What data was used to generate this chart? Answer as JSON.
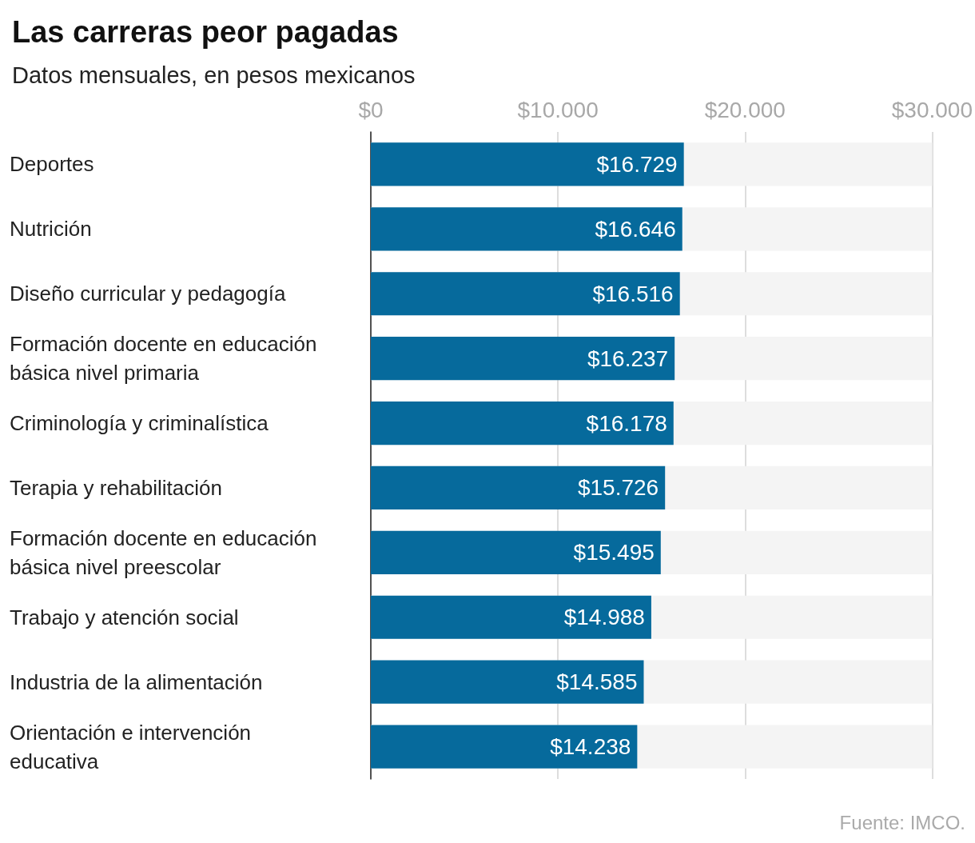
{
  "chart_data": {
    "type": "bar",
    "orientation": "horizontal",
    "title": "Las carreras peor pagadas",
    "subtitle": "Datos mensuales, en pesos mexicanos",
    "categories": [
      "Deportes",
      "Nutrición",
      "Diseño curricular y pedagogía",
      "Formación docente en educación básica nivel primaria",
      "Criminología y criminalística",
      "Terapia y rehabilitación",
      "Formación docente en educación básica nivel preescolar",
      "Trabajo y atención social",
      "Industria de la alimentación",
      "Orientación e intervención educativa"
    ],
    "values": [
      16729,
      16646,
      16516,
      16237,
      16178,
      15726,
      15495,
      14988,
      14585,
      14238
    ],
    "value_labels": [
      "$16.729",
      "$16.646",
      "$16.516",
      "$16.237",
      "$16.178",
      "$15.726",
      "$15.495",
      "$14.988",
      "$14.585",
      "$14.238"
    ],
    "color": "#066a9c",
    "xlim": [
      0,
      30000
    ],
    "xticks": [
      {
        "value": 0,
        "label": "$0"
      },
      {
        "value": 10000,
        "label": "$10.000"
      },
      {
        "value": 20000,
        "label": "$20.000"
      },
      {
        "value": 30000,
        "label": "$30.000"
      }
    ],
    "grid": "x",
    "annotations": [
      "Fuente: IMCO."
    ]
  }
}
